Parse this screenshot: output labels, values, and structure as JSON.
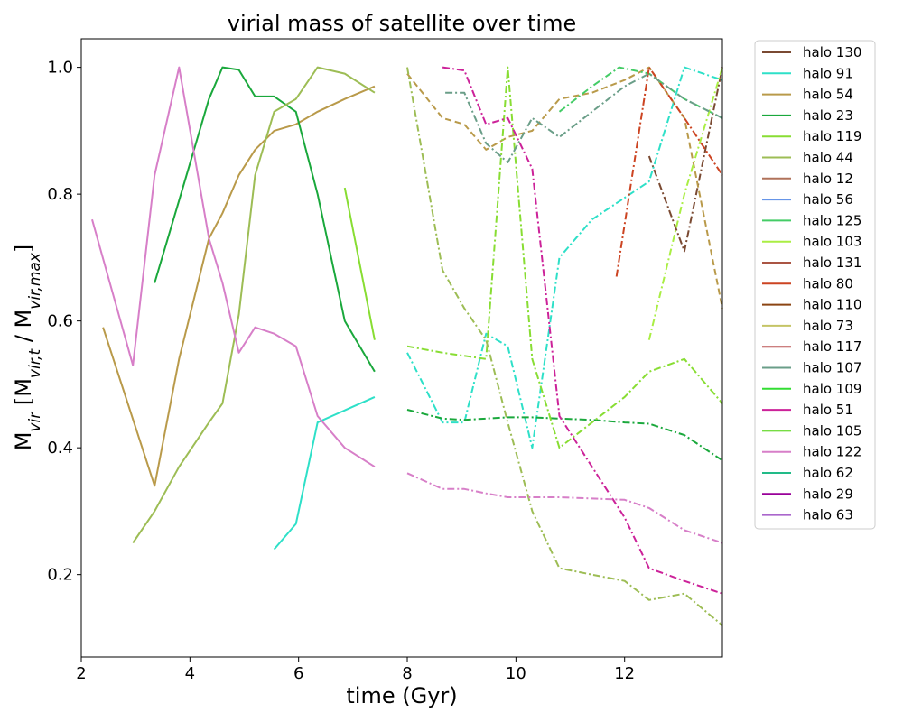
{
  "chart_data": {
    "type": "line",
    "title": "virial mass of satellite over time",
    "xlabel": "time (Gyr)",
    "ylabel_main": "M",
    "ylabel_sub1": "vir",
    "ylabel_mid": " [M",
    "ylabel_sub2": "vir,t",
    "ylabel_mid2": " / M",
    "ylabel_sub3": "vir,max",
    "ylabel_end": "]",
    "xlim": [
      2.0,
      13.8
    ],
    "ylim": [
      0.07,
      1.045
    ],
    "xticks": [
      2,
      4,
      6,
      8,
      10,
      12
    ],
    "yticks": [
      0.2,
      0.4,
      0.6,
      0.8,
      1.0
    ],
    "xtick_labels": [
      "2",
      "4",
      "6",
      "8",
      "10",
      "12"
    ],
    "ytick_labels": [
      "0.2",
      "0.4",
      "0.6",
      "0.8",
      "1.0"
    ],
    "legend_position": "outside-right",
    "series": [
      {
        "name": "halo 130",
        "color": "#7a4a32",
        "style": "dashdot",
        "x": [
          12.45,
          13.1,
          13.8
        ],
        "y": [
          0.86,
          0.71,
          1.0
        ]
      },
      {
        "name": "halo 91",
        "color": "#2ee0c8",
        "style": "solid",
        "x": [
          5.55,
          5.95,
          6.35,
          7.4
        ],
        "y": [
          0.24,
          0.28,
          0.44,
          0.48
        ]
      },
      {
        "name": "halo 91 (b)",
        "color": "#2ee0c8",
        "style": "dashdot",
        "x": [
          8.0,
          8.65,
          9.05,
          9.45,
          9.85,
          10.3,
          10.8,
          11.4,
          12.45,
          13.1,
          13.8
        ],
        "y": [
          0.55,
          0.44,
          0.44,
          0.58,
          0.56,
          0.4,
          0.7,
          0.76,
          0.82,
          1.0,
          0.98
        ]
      },
      {
        "name": "halo 54",
        "color": "#b99a4a",
        "style": "solid",
        "x": [
          2.4,
          3.35,
          3.8,
          4.35,
          4.6,
          4.9,
          5.2,
          5.55,
          5.95,
          6.35,
          6.85,
          7.4
        ],
        "y": [
          0.59,
          0.34,
          0.54,
          0.73,
          0.77,
          0.83,
          0.87,
          0.9,
          0.91,
          0.93,
          0.95,
          0.97
        ]
      },
      {
        "name": "halo 54 (b)",
        "color": "#b99a4a",
        "style": "dashed",
        "x": [
          8.0,
          8.65,
          9.05,
          9.45,
          9.85,
          10.3,
          10.8,
          11.4,
          12.0,
          12.45,
          13.1,
          13.8
        ],
        "y": [
          0.99,
          0.92,
          0.91,
          0.87,
          0.89,
          0.9,
          0.95,
          0.96,
          0.98,
          1.0,
          0.92,
          0.62
        ]
      },
      {
        "name": "halo 23",
        "color": "#1aa83c",
        "style": "solid",
        "x": [
          3.35,
          3.8,
          4.35,
          4.6,
          4.9,
          5.2,
          5.55,
          5.95,
          6.35,
          6.85,
          7.4
        ],
        "y": [
          0.66,
          0.79,
          0.95,
          1.0,
          0.996,
          0.954,
          0.954,
          0.93,
          0.8,
          0.6,
          0.52
        ]
      },
      {
        "name": "halo 23 (b)",
        "color": "#1aa83c",
        "style": "dashdot",
        "x": [
          8.0,
          8.65,
          9.05,
          9.45,
          9.85,
          10.3,
          10.8,
          11.4,
          12.0,
          12.45,
          13.1,
          13.8
        ],
        "y": [
          0.46,
          0.446,
          0.444,
          0.446,
          0.448,
          0.448,
          0.446,
          0.444,
          0.44,
          0.438,
          0.42,
          0.38
        ]
      },
      {
        "name": "halo 119",
        "color": "#88dd33",
        "style": "solid",
        "x": [
          6.85,
          7.4
        ],
        "y": [
          0.81,
          0.57
        ]
      },
      {
        "name": "halo 119 (b)",
        "color": "#88dd33",
        "style": "dashdot",
        "x": [
          8.0,
          8.65,
          9.05,
          9.45,
          9.85,
          10.3,
          10.8,
          11.4,
          12.0,
          12.45,
          13.1,
          13.8
        ],
        "y": [
          0.56,
          0.55,
          0.545,
          0.54,
          1.0,
          0.54,
          0.4,
          0.44,
          0.48,
          0.52,
          0.54,
          0.47
        ]
      },
      {
        "name": "halo 44",
        "color": "#9dbd55",
        "style": "solid",
        "x": [
          2.95,
          3.35,
          3.8,
          4.35,
          4.6,
          4.9,
          5.2,
          5.55,
          5.95,
          6.35,
          6.85,
          7.4
        ],
        "y": [
          0.25,
          0.3,
          0.37,
          0.44,
          0.47,
          0.61,
          0.83,
          0.93,
          0.95,
          1.0,
          0.99,
          0.96
        ]
      },
      {
        "name": "halo 44 (b)",
        "color": "#9dbd55",
        "style": "dashdot",
        "x": [
          8.0,
          8.65,
          9.05,
          9.45,
          9.85,
          10.3,
          10.8,
          11.4,
          12.0,
          12.45,
          13.1,
          13.8
        ],
        "y": [
          1.0,
          0.68,
          0.62,
          0.57,
          0.44,
          0.3,
          0.21,
          0.2,
          0.19,
          0.16,
          0.17,
          0.12
        ]
      },
      {
        "name": "halo 12",
        "color": "#b0725a",
        "style": "solid",
        "x": [],
        "y": []
      },
      {
        "name": "halo 56",
        "color": "#6695e8",
        "style": "solid",
        "x": [],
        "y": []
      },
      {
        "name": "halo 125",
        "color": "#44cc66",
        "style": "dashdot",
        "x": [
          10.8,
          11.4,
          11.9,
          12.45,
          13.1,
          13.8
        ],
        "y": [
          0.93,
          0.97,
          1.0,
          0.99,
          0.95,
          0.92
        ]
      },
      {
        "name": "halo 103",
        "color": "#aaee44",
        "style": "dashdot",
        "x": [
          12.45,
          13.1,
          13.8
        ],
        "y": [
          0.57,
          0.8,
          1.0
        ]
      },
      {
        "name": "halo 131",
        "color": "#aa5544",
        "style": "solid",
        "x": [],
        "y": []
      },
      {
        "name": "halo 80",
        "color": "#cc4422",
        "style": "dashdot",
        "x": [
          11.85,
          12.45,
          13.1,
          13.8
        ],
        "y": [
          0.67,
          1.0,
          0.92,
          0.83
        ]
      },
      {
        "name": "halo 110",
        "color": "#8b4513",
        "style": "solid",
        "x": [],
        "y": []
      },
      {
        "name": "halo 73",
        "color": "#c5c466",
        "style": "solid",
        "x": [],
        "y": []
      },
      {
        "name": "halo 117",
        "color": "#bb5555",
        "style": "solid",
        "x": [],
        "y": []
      },
      {
        "name": "halo 107",
        "color": "#6a9e88",
        "style": "dashdot",
        "x": [
          8.7,
          9.05,
          9.45,
          9.85,
          10.3,
          10.8,
          11.4,
          12.0,
          12.45,
          13.1,
          13.8
        ],
        "y": [
          0.96,
          0.96,
          0.88,
          0.85,
          0.92,
          0.89,
          0.93,
          0.97,
          0.99,
          0.95,
          0.92
        ]
      },
      {
        "name": "halo 109",
        "color": "#33dd33",
        "style": "solid",
        "x": [],
        "y": []
      },
      {
        "name": "halo 51",
        "color": "#cc2299",
        "style": "dashdot",
        "x": [
          8.65,
          9.05,
          9.45,
          9.85,
          10.3,
          10.8,
          11.4,
          12.0,
          12.45,
          13.1,
          13.8
        ],
        "y": [
          1.0,
          0.995,
          0.91,
          0.92,
          0.84,
          0.45,
          0.37,
          0.29,
          0.21,
          0.19,
          0.17
        ]
      },
      {
        "name": "halo 105",
        "color": "#77dd44",
        "style": "solid",
        "x": [],
        "y": []
      },
      {
        "name": "halo 122",
        "color": "#d77fc8",
        "style": "solid",
        "x": [
          2.2,
          2.95,
          3.35,
          3.8,
          4.35,
          4.6,
          4.9,
          5.2,
          5.55,
          5.95,
          6.35,
          6.85,
          7.4
        ],
        "y": [
          0.76,
          0.53,
          0.83,
          1.0,
          0.73,
          0.66,
          0.55,
          0.59,
          0.58,
          0.56,
          0.45,
          0.4,
          0.37
        ]
      },
      {
        "name": "halo 122 (b)",
        "color": "#d77fc8",
        "style": "dashdot",
        "x": [
          8.0,
          8.65,
          9.05,
          9.45,
          9.85,
          10.3,
          10.8,
          11.4,
          12.0,
          12.45,
          13.1,
          13.8
        ],
        "y": [
          0.36,
          0.335,
          0.335,
          0.328,
          0.322,
          0.322,
          0.322,
          0.32,
          0.318,
          0.305,
          0.27,
          0.25
        ]
      },
      {
        "name": "halo 62",
        "color": "#22bb88",
        "style": "solid",
        "x": [],
        "y": []
      },
      {
        "name": "halo 29",
        "color": "#990099",
        "style": "solid",
        "x": [],
        "y": []
      },
      {
        "name": "halo 63",
        "color": "#aa66cc",
        "style": "solid",
        "x": [],
        "y": []
      }
    ],
    "legend": [
      {
        "label": "halo 130",
        "color": "#7a4a32"
      },
      {
        "label": "halo 91",
        "color": "#2ee0c8"
      },
      {
        "label": "halo 54",
        "color": "#b99a4a"
      },
      {
        "label": "halo 23",
        "color": "#1aa83c"
      },
      {
        "label": "halo 119",
        "color": "#88dd33"
      },
      {
        "label": "halo 44",
        "color": "#9dbd55"
      },
      {
        "label": "halo 12",
        "color": "#b0725a"
      },
      {
        "label": "halo 56",
        "color": "#6695e8"
      },
      {
        "label": "halo 125",
        "color": "#44cc66"
      },
      {
        "label": "halo 103",
        "color": "#aaee44"
      },
      {
        "label": "halo 131",
        "color": "#aa5544"
      },
      {
        "label": "halo 80",
        "color": "#cc4422"
      },
      {
        "label": "halo 110",
        "color": "#8b4513"
      },
      {
        "label": "halo 73",
        "color": "#c5c466"
      },
      {
        "label": "halo 117",
        "color": "#bb5555"
      },
      {
        "label": "halo 107",
        "color": "#6a9e88"
      },
      {
        "label": "halo 109",
        "color": "#33dd33"
      },
      {
        "label": "halo 51",
        "color": "#cc2299"
      },
      {
        "label": "halo 105",
        "color": "#77dd44"
      },
      {
        "label": "halo 122",
        "color": "#d77fc8"
      },
      {
        "label": "halo 62",
        "color": "#22bb88"
      },
      {
        "label": "halo 29",
        "color": "#990099"
      },
      {
        "label": "halo 63",
        "color": "#aa66cc"
      }
    ]
  }
}
